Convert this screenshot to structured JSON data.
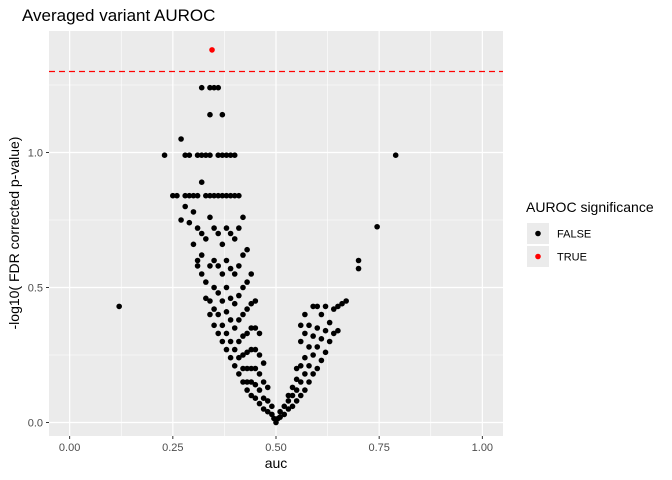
{
  "chart_data": {
    "type": "scatter",
    "title": "Averaged variant AUROC",
    "xlabel": "auc",
    "ylabel": "-log10( FDR corrected p-value)",
    "xlim": [
      -0.05,
      1.05
    ],
    "ylim": [
      -0.05,
      1.45
    ],
    "x_ticks": [
      "0.00",
      "0.25",
      "0.50",
      "0.75",
      "1.00"
    ],
    "x_tick_values": [
      0,
      0.25,
      0.5,
      0.75,
      1.0
    ],
    "y_ticks": [
      "0.0",
      "0.5",
      "1.0"
    ],
    "y_tick_values": [
      0,
      0.5,
      1.0
    ],
    "grid": true,
    "threshold_line": {
      "y": 1.3,
      "color": "#ff0000",
      "style": "dashed"
    },
    "legend": {
      "title": "AUROC significance",
      "placement": "right",
      "entries": [
        {
          "label": "FALSE",
          "color": "#000000"
        },
        {
          "label": "TRUE",
          "color": "#ff0000"
        }
      ]
    },
    "series": [
      {
        "name": "FALSE",
        "color": "#000000",
        "points": [
          [
            0.12,
            0.43
          ],
          [
            0.23,
            0.99
          ],
          [
            0.25,
            0.84
          ],
          [
            0.26,
            0.84
          ],
          [
            0.27,
            0.75
          ],
          [
            0.27,
            1.05
          ],
          [
            0.28,
            0.99
          ],
          [
            0.28,
            0.84
          ],
          [
            0.28,
            0.8
          ],
          [
            0.29,
            0.99
          ],
          [
            0.29,
            0.84
          ],
          [
            0.29,
            0.74
          ],
          [
            0.3,
            0.84
          ],
          [
            0.3,
            0.78
          ],
          [
            0.3,
            0.66
          ],
          [
            0.31,
            0.84
          ],
          [
            0.31,
            0.99
          ],
          [
            0.31,
            0.72
          ],
          [
            0.31,
            0.58
          ],
          [
            0.31,
            0.6
          ],
          [
            0.32,
            0.99
          ],
          [
            0.32,
            1.24
          ],
          [
            0.32,
            0.89
          ],
          [
            0.32,
            0.7
          ],
          [
            0.32,
            0.62
          ],
          [
            0.32,
            0.55
          ],
          [
            0.33,
            0.99
          ],
          [
            0.33,
            0.84
          ],
          [
            0.33,
            0.68
          ],
          [
            0.33,
            0.52
          ],
          [
            0.33,
            0.46
          ],
          [
            0.34,
            1.24
          ],
          [
            0.34,
            1.14
          ],
          [
            0.34,
            0.99
          ],
          [
            0.34,
            0.84
          ],
          [
            0.34,
            0.76
          ],
          [
            0.34,
            0.58
          ],
          [
            0.34,
            0.45
          ],
          [
            0.34,
            0.4
          ],
          [
            0.35,
            1.24
          ],
          [
            0.35,
            0.84
          ],
          [
            0.35,
            0.72
          ],
          [
            0.35,
            0.6
          ],
          [
            0.35,
            0.5
          ],
          [
            0.35,
            0.42
          ],
          [
            0.35,
            0.36
          ],
          [
            0.36,
            1.24
          ],
          [
            0.36,
            0.99
          ],
          [
            0.36,
            0.84
          ],
          [
            0.36,
            0.7
          ],
          [
            0.36,
            0.58
          ],
          [
            0.36,
            0.48
          ],
          [
            0.36,
            0.4
          ],
          [
            0.36,
            0.33
          ],
          [
            0.37,
            1.14
          ],
          [
            0.37,
            0.99
          ],
          [
            0.37,
            0.84
          ],
          [
            0.37,
            0.66
          ],
          [
            0.37,
            0.55
          ],
          [
            0.37,
            0.45
          ],
          [
            0.37,
            0.36
          ],
          [
            0.37,
            0.3
          ],
          [
            0.38,
            0.99
          ],
          [
            0.38,
            0.84
          ],
          [
            0.38,
            0.72
          ],
          [
            0.38,
            0.6
          ],
          [
            0.38,
            0.5
          ],
          [
            0.38,
            0.41
          ],
          [
            0.38,
            0.33
          ],
          [
            0.38,
            0.27
          ],
          [
            0.39,
            0.99
          ],
          [
            0.39,
            0.84
          ],
          [
            0.39,
            0.7
          ],
          [
            0.39,
            0.57
          ],
          [
            0.39,
            0.46
          ],
          [
            0.39,
            0.38
          ],
          [
            0.39,
            0.3
          ],
          [
            0.39,
            0.24
          ],
          [
            0.4,
            0.99
          ],
          [
            0.4,
            0.84
          ],
          [
            0.4,
            0.68
          ],
          [
            0.4,
            0.55
          ],
          [
            0.4,
            0.44
          ],
          [
            0.4,
            0.35
          ],
          [
            0.4,
            0.27
          ],
          [
            0.4,
            0.21
          ],
          [
            0.41,
            0.84
          ],
          [
            0.41,
            0.72
          ],
          [
            0.41,
            0.58
          ],
          [
            0.41,
            0.47
          ],
          [
            0.41,
            0.38
          ],
          [
            0.41,
            0.3
          ],
          [
            0.41,
            0.24
          ],
          [
            0.41,
            0.18
          ],
          [
            0.42,
            0.76
          ],
          [
            0.42,
            0.62
          ],
          [
            0.42,
            0.5
          ],
          [
            0.42,
            0.4
          ],
          [
            0.42,
            0.32
          ],
          [
            0.42,
            0.25
          ],
          [
            0.42,
            0.2
          ],
          [
            0.42,
            0.15
          ],
          [
            0.43,
            0.64
          ],
          [
            0.43,
            0.52
          ],
          [
            0.43,
            0.42
          ],
          [
            0.43,
            0.33
          ],
          [
            0.43,
            0.26
          ],
          [
            0.43,
            0.2
          ],
          [
            0.43,
            0.15
          ],
          [
            0.43,
            0.12
          ],
          [
            0.44,
            0.55
          ],
          [
            0.44,
            0.44
          ],
          [
            0.44,
            0.35
          ],
          [
            0.44,
            0.27
          ],
          [
            0.44,
            0.2
          ],
          [
            0.44,
            0.15
          ],
          [
            0.44,
            0.1
          ],
          [
            0.45,
            0.45
          ],
          [
            0.45,
            0.35
          ],
          [
            0.45,
            0.27
          ],
          [
            0.45,
            0.2
          ],
          [
            0.45,
            0.14
          ],
          [
            0.45,
            0.09
          ],
          [
            0.46,
            0.33
          ],
          [
            0.46,
            0.25
          ],
          [
            0.46,
            0.18
          ],
          [
            0.46,
            0.12
          ],
          [
            0.46,
            0.07
          ],
          [
            0.47,
            0.22
          ],
          [
            0.47,
            0.15
          ],
          [
            0.47,
            0.09
          ],
          [
            0.47,
            0.05
          ],
          [
            0.48,
            0.13
          ],
          [
            0.48,
            0.08
          ],
          [
            0.48,
            0.04
          ],
          [
            0.49,
            0.06
          ],
          [
            0.49,
            0.03
          ],
          [
            0.495,
            0.015
          ],
          [
            0.5,
            0.0
          ],
          [
            0.505,
            0.015
          ],
          [
            0.51,
            0.02
          ],
          [
            0.51,
            0.04
          ],
          [
            0.52,
            0.03
          ],
          [
            0.52,
            0.06
          ],
          [
            0.53,
            0.05
          ],
          [
            0.53,
            0.08
          ],
          [
            0.53,
            0.1
          ],
          [
            0.54,
            0.06
          ],
          [
            0.54,
            0.1
          ],
          [
            0.54,
            0.13
          ],
          [
            0.55,
            0.08
          ],
          [
            0.55,
            0.12
          ],
          [
            0.55,
            0.16
          ],
          [
            0.55,
            0.2
          ],
          [
            0.56,
            0.1
          ],
          [
            0.56,
            0.15
          ],
          [
            0.56,
            0.21
          ],
          [
            0.56,
            0.3
          ],
          [
            0.56,
            0.36
          ],
          [
            0.57,
            0.12
          ],
          [
            0.57,
            0.18
          ],
          [
            0.57,
            0.24
          ],
          [
            0.57,
            0.33
          ],
          [
            0.57,
            0.4
          ],
          [
            0.58,
            0.15
          ],
          [
            0.58,
            0.21
          ],
          [
            0.58,
            0.28
          ],
          [
            0.58,
            0.36
          ],
          [
            0.59,
            0.18
          ],
          [
            0.59,
            0.25
          ],
          [
            0.59,
            0.32
          ],
          [
            0.59,
            0.43
          ],
          [
            0.6,
            0.2
          ],
          [
            0.6,
            0.28
          ],
          [
            0.6,
            0.35
          ],
          [
            0.6,
            0.43
          ],
          [
            0.61,
            0.23
          ],
          [
            0.61,
            0.31
          ],
          [
            0.61,
            0.4
          ],
          [
            0.62,
            0.26
          ],
          [
            0.62,
            0.34
          ],
          [
            0.62,
            0.43
          ],
          [
            0.63,
            0.3
          ],
          [
            0.63,
            0.37
          ],
          [
            0.64,
            0.33
          ],
          [
            0.64,
            0.42
          ],
          [
            0.65,
            0.34
          ],
          [
            0.65,
            0.43
          ],
          [
            0.66,
            0.44
          ],
          [
            0.67,
            0.45
          ],
          [
            0.7,
            0.57
          ],
          [
            0.7,
            0.6
          ],
          [
            0.745,
            0.725
          ],
          [
            0.79,
            0.99
          ]
        ]
      },
      {
        "name": "TRUE",
        "color": "#ff0000",
        "points": [
          [
            0.345,
            1.38
          ]
        ]
      }
    ]
  }
}
